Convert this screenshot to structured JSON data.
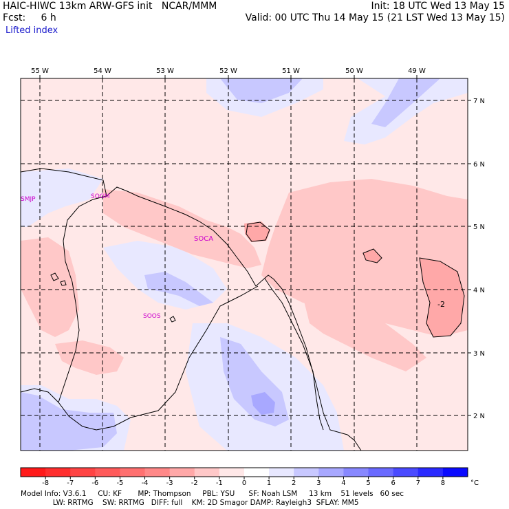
{
  "header": {
    "title_left": "HAIC-HIWC 13km ARW-GFS init   NCAR/MMM",
    "fcst": "Fcst:     6 h",
    "field": "Lifted index",
    "init": "Init: 18 UTC Wed 13 May 15",
    "valid": "Valid: 00 UTC Thu 14 May 15 (21 LST Wed 13 May 15)"
  },
  "map": {
    "lon_labels": [
      "55 W",
      "54 W",
      "53 W",
      "52 W",
      "51 W",
      "50 W",
      "49 W"
    ],
    "lat_labels": [
      "7 N",
      "6 N",
      "5 N",
      "4 N",
      "3 N",
      "2 N"
    ],
    "stations": [
      "SMJP",
      "SOGM",
      "SOCA",
      "SOOS"
    ],
    "contour_label": "-2",
    "colors": {
      "neg1": "#ffe8e8",
      "neg2": "#ffc8c8",
      "neg3": "#ffa8a8",
      "pos1": "#e8e8ff",
      "pos2": "#c8c8ff",
      "pos3": "#a8a8ff",
      "station": "#cc00cc"
    }
  },
  "colorbar": {
    "ticks": [
      "-8",
      "-7",
      "-6",
      "-5",
      "-4",
      "-3",
      "-2",
      "-1",
      "0",
      "1",
      "2",
      "3",
      "4",
      "5",
      "6",
      "7",
      "8"
    ],
    "unit": "°C",
    "colors": [
      "#ff1a1a",
      "#ff2e2e",
      "#ff4444",
      "#ff5a5a",
      "#ff7070",
      "#ff8888",
      "#ffa8a8",
      "#ffc8c8",
      "#ffe8e8",
      "#ffffff",
      "#e8e8ff",
      "#c8c8ff",
      "#a8a8ff",
      "#8888ff",
      "#6a6aff",
      "#4a4aff",
      "#2a2aff",
      "#0a0aff"
    ]
  },
  "footer": {
    "line1": "Model Info: V3.6.1     CU: KF       MP: Thompson     PBL: YSU      SF: Noah LSM     13 km    51 levels   60 sec",
    "line2": "              LW: RRTMG    SW: RRTMG   DIFF: full    KM: 2D Smagor DAMP: Rayleigh3  SFLAY: MM5"
  }
}
